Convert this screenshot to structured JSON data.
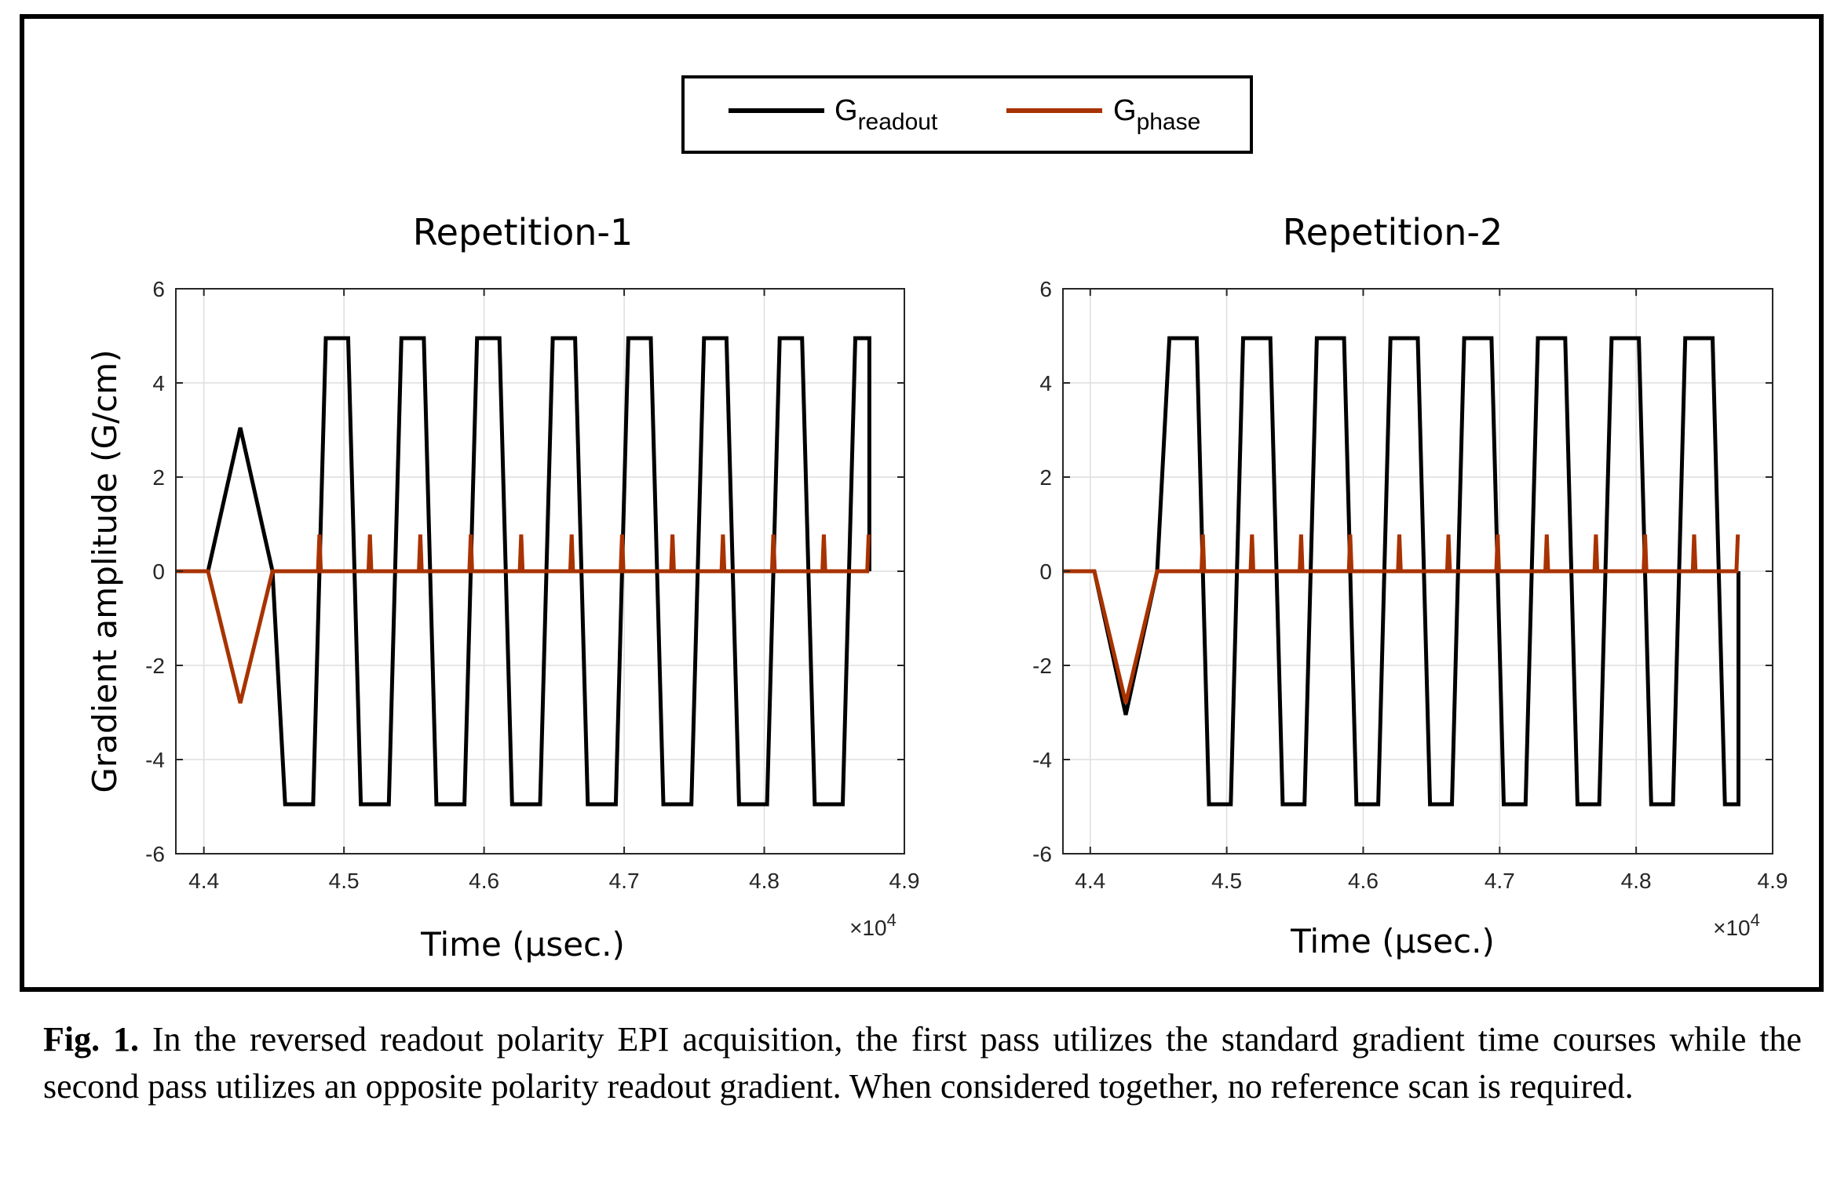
{
  "legend": [
    {
      "base": "G",
      "sub": "readout",
      "color": "#000000"
    },
    {
      "base": "G",
      "sub": "phase",
      "color": "#a83200"
    }
  ],
  "caption": {
    "label": "Fig. 1.",
    "text": " In the reversed readout polarity EPI acquisition, the first pass utilizes the standard gradient time courses while the second pass utilizes an opposite polarity readout gradient.  When considered together, no reference scan is required."
  },
  "chart_data": [
    {
      "type": "line",
      "title": "Repetition-1",
      "xlabel": "Time (μsec.)",
      "ylabel": "Gradient amplitude (G/cm)",
      "x_exponent_label": "×10",
      "x_exponent_power": "4",
      "xlim": [
        4.38,
        4.9
      ],
      "ylim": [
        -6,
        6
      ],
      "xticks": [
        4.4,
        4.5,
        4.6,
        4.7,
        4.8,
        4.9
      ],
      "xtick_labels": [
        "4.4",
        "4.5",
        "4.6",
        "4.7",
        "4.8",
        "4.9"
      ],
      "yticks": [
        -6,
        -4,
        -2,
        0,
        2,
        4,
        6
      ],
      "ytick_labels": [
        "-6",
        "-4",
        "-2",
        "0",
        "2",
        "4",
        "6"
      ],
      "grid": true,
      "series": [
        {
          "name": "G_readout",
          "color": "#000000",
          "x": [
            4.38,
            4.403,
            4.426,
            4.449,
            4.458,
            4.478,
            4.487,
            4.503,
            4.512,
            4.532,
            4.541,
            4.557,
            4.566,
            4.586,
            4.595,
            4.611,
            4.62,
            4.64,
            4.649,
            4.665,
            4.674,
            4.694,
            4.703,
            4.719,
            4.728,
            4.748,
            4.757,
            4.773,
            4.782,
            4.802,
            4.811,
            4.827,
            4.836,
            4.856,
            4.865,
            4.875,
            4.875
          ],
          "y": [
            0,
            0,
            3.05,
            0,
            -4.95,
            -4.95,
            4.95,
            4.95,
            -4.95,
            -4.95,
            4.95,
            4.95,
            -4.95,
            -4.95,
            4.95,
            4.95,
            -4.95,
            -4.95,
            4.95,
            4.95,
            -4.95,
            -4.95,
            4.95,
            4.95,
            -4.95,
            -4.95,
            4.95,
            4.95,
            -4.95,
            -4.95,
            4.95,
            4.95,
            -4.95,
            -4.95,
            4.95,
            4.95,
            0
          ]
        },
        {
          "name": "G_phase",
          "color": "#a83200",
          "x": [
            4.38,
            4.403,
            4.426,
            4.449,
            4.4815,
            4.4825,
            4.4835,
            4.5175,
            4.5185,
            4.5195,
            4.5535,
            4.5545,
            4.5555,
            4.5895,
            4.5905,
            4.5915,
            4.6255,
            4.6265,
            4.6275,
            4.6615,
            4.6625,
            4.6635,
            4.6975,
            4.6985,
            4.6995,
            4.7335,
            4.7345,
            4.7355,
            4.7695,
            4.7705,
            4.7715,
            4.8055,
            4.8065,
            4.8075,
            4.8415,
            4.8425,
            4.8435,
            4.8735,
            4.8745
          ],
          "y": [
            0,
            0,
            -2.8,
            0,
            0,
            0.78,
            0,
            0,
            0.78,
            0,
            0,
            0.78,
            0,
            0,
            0.78,
            0,
            0,
            0.78,
            0,
            0,
            0.78,
            0,
            0,
            0.78,
            0,
            0,
            0.78,
            0,
            0,
            0.78,
            0,
            0,
            0.78,
            0,
            0,
            0.78,
            0,
            0,
            0.78
          ]
        }
      ]
    },
    {
      "type": "line",
      "title": "Repetition-2",
      "xlabel": "Time (μsec.)",
      "ylabel": "",
      "x_exponent_label": "×10",
      "x_exponent_power": "4",
      "xlim": [
        4.38,
        4.9
      ],
      "ylim": [
        -6,
        6
      ],
      "xticks": [
        4.4,
        4.5,
        4.6,
        4.7,
        4.8,
        4.9
      ],
      "xtick_labels": [
        "4.4",
        "4.5",
        "4.6",
        "4.7",
        "4.8",
        "4.9"
      ],
      "yticks": [
        -6,
        -4,
        -2,
        0,
        2,
        4,
        6
      ],
      "ytick_labels": [
        "-6",
        "-4",
        "-2",
        "0",
        "2",
        "4",
        "6"
      ],
      "grid": true,
      "series": [
        {
          "name": "G_readout",
          "color": "#000000",
          "x": [
            4.38,
            4.403,
            4.426,
            4.449,
            4.458,
            4.478,
            4.487,
            4.503,
            4.512,
            4.532,
            4.541,
            4.557,
            4.566,
            4.586,
            4.595,
            4.611,
            4.62,
            4.64,
            4.649,
            4.665,
            4.674,
            4.694,
            4.703,
            4.719,
            4.728,
            4.748,
            4.757,
            4.773,
            4.782,
            4.802,
            4.811,
            4.827,
            4.836,
            4.856,
            4.865,
            4.875,
            4.875
          ],
          "y": [
            0,
            0,
            -3.05,
            0,
            4.95,
            4.95,
            -4.95,
            -4.95,
            4.95,
            4.95,
            -4.95,
            -4.95,
            4.95,
            4.95,
            -4.95,
            -4.95,
            4.95,
            4.95,
            -4.95,
            -4.95,
            4.95,
            4.95,
            -4.95,
            -4.95,
            4.95,
            4.95,
            -4.95,
            -4.95,
            4.95,
            4.95,
            -4.95,
            -4.95,
            4.95,
            4.95,
            -4.95,
            -4.95,
            0
          ]
        },
        {
          "name": "G_phase",
          "color": "#a83200",
          "x": [
            4.38,
            4.403,
            4.426,
            4.449,
            4.4815,
            4.4825,
            4.4835,
            4.5175,
            4.5185,
            4.5195,
            4.5535,
            4.5545,
            4.5555,
            4.5895,
            4.5905,
            4.5915,
            4.6255,
            4.6265,
            4.6275,
            4.6615,
            4.6625,
            4.6635,
            4.6975,
            4.6985,
            4.6995,
            4.7335,
            4.7345,
            4.7355,
            4.7695,
            4.7705,
            4.7715,
            4.8055,
            4.8065,
            4.8075,
            4.8415,
            4.8425,
            4.8435,
            4.8735,
            4.8745
          ],
          "y": [
            0,
            0,
            -2.8,
            0,
            0,
            0.78,
            0,
            0,
            0.78,
            0,
            0,
            0.78,
            0,
            0,
            0.78,
            0,
            0,
            0.78,
            0,
            0,
            0.78,
            0,
            0,
            0.78,
            0,
            0,
            0.78,
            0,
            0,
            0.78,
            0,
            0,
            0.78,
            0,
            0,
            0.78,
            0,
            0,
            0.78
          ]
        }
      ]
    }
  ]
}
